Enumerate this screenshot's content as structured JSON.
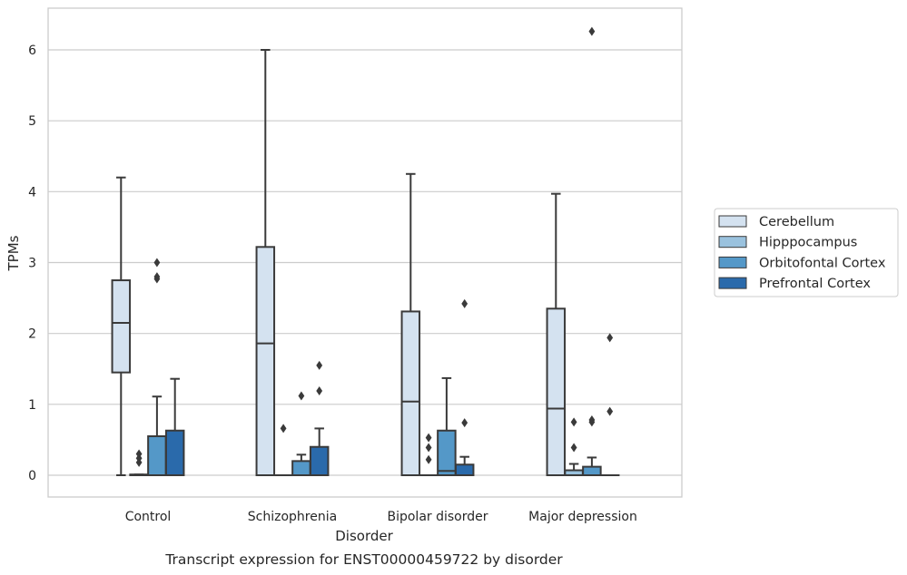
{
  "chart_data": {
    "type": "box",
    "caption": "Transcript expression for ENST00000459722 by disorder",
    "xlabel": "Disorder",
    "ylabel": "TPMs",
    "ylim": [
      -0.3,
      6.6
    ],
    "yticks": [
      0,
      1,
      2,
      3,
      4,
      5,
      6
    ],
    "grid": true,
    "legend_position": "right",
    "categories": [
      "Control",
      "Schizophrenia",
      "Bipolar disorder",
      "Major depression"
    ],
    "series": [
      {
        "name": "Cerebellum",
        "color": "#d4e2f0",
        "boxes": [
          {
            "whislo": 0.0,
            "q1": 1.45,
            "med": 2.15,
            "q3": 2.75,
            "whishi": 4.2,
            "fliers": []
          },
          {
            "whislo": 0.0,
            "q1": 0.0,
            "med": 1.86,
            "q3": 3.22,
            "whishi": 6.0,
            "fliers": []
          },
          {
            "whislo": 0.0,
            "q1": 0.0,
            "med": 1.04,
            "q3": 2.31,
            "whishi": 4.25,
            "fliers": []
          },
          {
            "whislo": 0.0,
            "q1": 0.0,
            "med": 0.94,
            "q3": 2.35,
            "whishi": 3.97,
            "fliers": []
          }
        ]
      },
      {
        "name": "Hipppocampus",
        "color": "#9ac2de",
        "boxes": [
          {
            "whislo": 0.0,
            "q1": 0.0,
            "med": 0.0,
            "q3": 0.01,
            "whishi": 0.01,
            "fliers": [
              0.18,
              0.24,
              0.3
            ]
          },
          {
            "whislo": 0.0,
            "q1": 0.0,
            "med": 0.0,
            "q3": 0.0,
            "whishi": 0.0,
            "fliers": [
              0.66
            ]
          },
          {
            "whislo": 0.0,
            "q1": 0.0,
            "med": 0.0,
            "q3": 0.0,
            "whishi": 0.0,
            "fliers": [
              0.22,
              0.39,
              0.53
            ]
          },
          {
            "whislo": 0.0,
            "q1": 0.0,
            "med": 0.0,
            "q3": 0.07,
            "whishi": 0.16,
            "fliers": [
              0.39,
              0.75
            ]
          }
        ]
      },
      {
        "name": "Orbitofontal Cortex",
        "color": "#5498c8",
        "boxes": [
          {
            "whislo": 0.0,
            "q1": 0.0,
            "med": 0.0,
            "q3": 0.55,
            "whishi": 1.11,
            "fliers": [
              2.77,
              2.8,
              3.0
            ]
          },
          {
            "whislo": 0.0,
            "q1": 0.0,
            "med": 0.0,
            "q3": 0.2,
            "whishi": 0.29,
            "fliers": [
              1.12
            ]
          },
          {
            "whislo": 0.0,
            "q1": 0.0,
            "med": 0.06,
            "q3": 0.63,
            "whishi": 1.37,
            "fliers": []
          },
          {
            "whislo": 0.0,
            "q1": 0.0,
            "med": 0.0,
            "q3": 0.12,
            "whishi": 0.25,
            "fliers": [
              0.75,
              0.78,
              6.26
            ]
          }
        ]
      },
      {
        "name": "Prefrontal Cortex",
        "color": "#2a6aab",
        "boxes": [
          {
            "whislo": 0.0,
            "q1": 0.0,
            "med": 0.0,
            "q3": 0.63,
            "whishi": 1.36,
            "fliers": []
          },
          {
            "whislo": 0.0,
            "q1": 0.0,
            "med": 0.0,
            "q3": 0.4,
            "whishi": 0.66,
            "fliers": [
              1.19,
              1.55
            ]
          },
          {
            "whislo": 0.0,
            "q1": 0.0,
            "med": 0.0,
            "q3": 0.15,
            "whishi": 0.26,
            "fliers": [
              0.74,
              2.42
            ]
          },
          {
            "whislo": 0.0,
            "q1": 0.0,
            "med": 0.0,
            "q3": 0.0,
            "whishi": 0.0,
            "fliers": [
              0.9,
              1.94
            ]
          }
        ]
      }
    ]
  }
}
